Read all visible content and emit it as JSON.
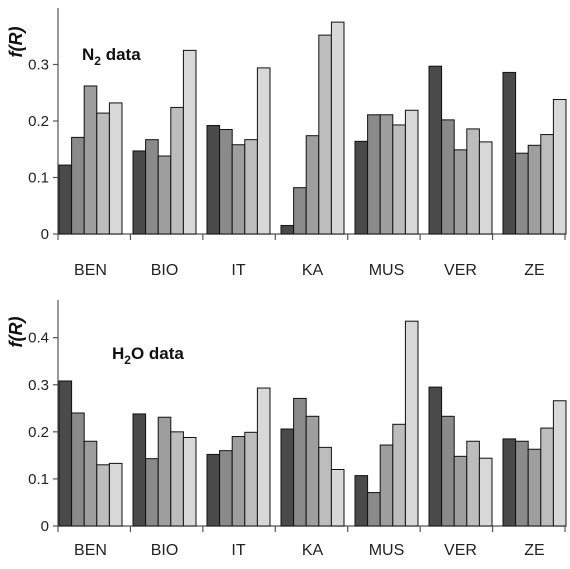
{
  "chart_data": [
    {
      "type": "bar",
      "ylabel": "f(R)",
      "annotation": "N2 data",
      "categories": [
        "BEN",
        "BIO",
        "IT",
        "KA",
        "MUS",
        "VER",
        "ZE"
      ],
      "ylim": [
        0,
        0.4
      ],
      "yticks": [
        "0",
        "0.1",
        "0.2",
        "0.3"
      ],
      "ytick_values": [
        0,
        0.1,
        0.2,
        0.3
      ],
      "series": [
        {
          "color": "#4a4a4a",
          "values": [
            0.122,
            0.147,
            0.192,
            0.015,
            0.164,
            0.297,
            0.286
          ]
        },
        {
          "color": "#8a8a8a",
          "values": [
            0.171,
            0.167,
            0.185,
            0.082,
            0.211,
            0.202,
            0.143
          ]
        },
        {
          "color": "#9e9e9e",
          "values": [
            0.262,
            0.138,
            0.158,
            0.174,
            0.211,
            0.149,
            0.157
          ]
        },
        {
          "color": "#bdbdbd",
          "values": [
            0.214,
            0.224,
            0.167,
            0.352,
            0.193,
            0.186,
            0.176
          ]
        },
        {
          "color": "#d8d8d8",
          "values": [
            0.232,
            0.325,
            0.294,
            0.375,
            0.219,
            0.163,
            0.238
          ]
        }
      ]
    },
    {
      "type": "bar",
      "ylabel": "f(R)",
      "annotation": "H2O data",
      "categories": [
        "BEN",
        "BIO",
        "IT",
        "KA",
        "MUS",
        "VER",
        "ZE"
      ],
      "ylim": [
        0,
        0.48
      ],
      "yticks": [
        "0",
        "0.1",
        "0.2",
        "0.3",
        "0.4"
      ],
      "ytick_values": [
        0,
        0.1,
        0.2,
        0.3,
        0.4
      ],
      "series": [
        {
          "color": "#4a4a4a",
          "values": [
            0.308,
            0.238,
            0.152,
            0.206,
            0.107,
            0.295,
            0.185
          ]
        },
        {
          "color": "#8a8a8a",
          "values": [
            0.24,
            0.143,
            0.16,
            0.271,
            0.071,
            0.233,
            0.18
          ]
        },
        {
          "color": "#9e9e9e",
          "values": [
            0.18,
            0.231,
            0.19,
            0.233,
            0.172,
            0.148,
            0.163
          ]
        },
        {
          "color": "#bdbdbd",
          "values": [
            0.13,
            0.2,
            0.199,
            0.167,
            0.216,
            0.18,
            0.208
          ]
        },
        {
          "color": "#d8d8d8",
          "values": [
            0.133,
            0.188,
            0.293,
            0.12,
            0.435,
            0.144,
            0.266
          ]
        }
      ]
    }
  ]
}
